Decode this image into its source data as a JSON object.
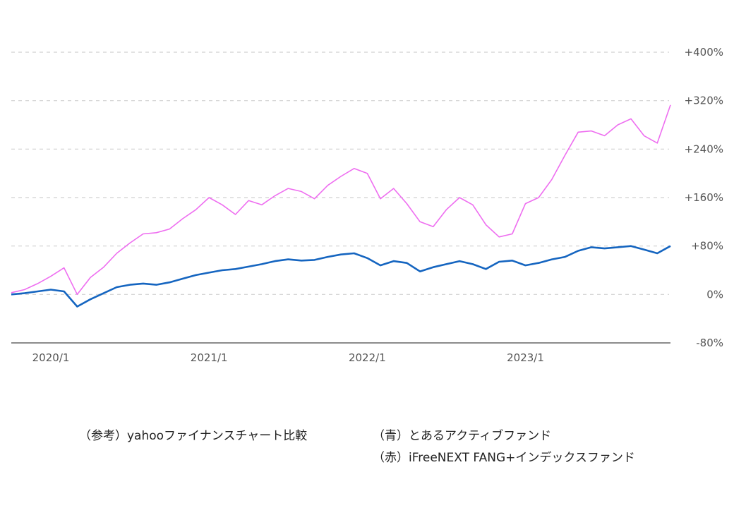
{
  "chart_data": {
    "type": "line",
    "y_ticks": [
      "+400%",
      "+320%",
      "+240%",
      "+160%",
      "+80%",
      "0%",
      "-80%"
    ],
    "y_tick_values": [
      400,
      320,
      240,
      160,
      80,
      0,
      -80
    ],
    "ylim": [
      -80,
      400
    ],
    "x_ticks": [
      "2020/1",
      "2021/1",
      "2022/1",
      "2023/1"
    ],
    "x_tick_values": [
      "2020-01",
      "2021-01",
      "2022-01",
      "2023-01"
    ],
    "xlim": [
      "2019-10",
      "2023-12"
    ],
    "grid": "horizontal-dashed",
    "series": [
      {
        "color": "#ee6ef0",
        "x": [
          "2019-10",
          "2019-11",
          "2019-12",
          "2020-01",
          "2020-02",
          "2020-03",
          "2020-04",
          "2020-05",
          "2020-06",
          "2020-07",
          "2020-08",
          "2020-09",
          "2020-10",
          "2020-11",
          "2020-12",
          "2021-01",
          "2021-02",
          "2021-03",
          "2021-04",
          "2021-05",
          "2021-06",
          "2021-07",
          "2021-08",
          "2021-09",
          "2021-10",
          "2021-11",
          "2021-12",
          "2022-01",
          "2022-02",
          "2022-03",
          "2022-04",
          "2022-05",
          "2022-06",
          "2022-07",
          "2022-08",
          "2022-09",
          "2022-10",
          "2022-11",
          "2022-12",
          "2023-01",
          "2023-02",
          "2023-03",
          "2023-04",
          "2023-05",
          "2023-06",
          "2023-07",
          "2023-08",
          "2023-09",
          "2023-10",
          "2023-11",
          "2023-12"
        ],
        "values": [
          3,
          8,
          18,
          30,
          44,
          0,
          28,
          45,
          68,
          85,
          100,
          102,
          108,
          125,
          140,
          160,
          148,
          132,
          155,
          148,
          163,
          175,
          170,
          158,
          180,
          195,
          208,
          200,
          158,
          175,
          150,
          120,
          112,
          140,
          160,
          148,
          115,
          95,
          100,
          150,
          160,
          190,
          230,
          268,
          270,
          262,
          280,
          290,
          262,
          250,
          313
        ]
      },
      {
        "color": "#1565c0",
        "x": [
          "2019-10",
          "2019-11",
          "2019-12",
          "2020-01",
          "2020-02",
          "2020-03",
          "2020-04",
          "2020-05",
          "2020-06",
          "2020-07",
          "2020-08",
          "2020-09",
          "2020-10",
          "2020-11",
          "2020-12",
          "2021-01",
          "2021-02",
          "2021-03",
          "2021-04",
          "2021-05",
          "2021-06",
          "2021-07",
          "2021-08",
          "2021-09",
          "2021-10",
          "2021-11",
          "2021-12",
          "2022-01",
          "2022-02",
          "2022-03",
          "2022-04",
          "2022-05",
          "2022-06",
          "2022-07",
          "2022-08",
          "2022-09",
          "2022-10",
          "2022-11",
          "2022-12",
          "2023-01",
          "2023-02",
          "2023-03",
          "2023-04",
          "2023-05",
          "2023-06",
          "2023-07",
          "2023-08",
          "2023-09",
          "2023-10",
          "2023-11",
          "2023-12"
        ],
        "values": [
          0,
          2,
          5,
          8,
          5,
          -20,
          -8,
          2,
          12,
          16,
          18,
          16,
          20,
          26,
          32,
          36,
          40,
          42,
          46,
          50,
          55,
          58,
          56,
          57,
          62,
          66,
          68,
          60,
          48,
          55,
          52,
          38,
          45,
          50,
          55,
          50,
          42,
          54,
          56,
          48,
          52,
          58,
          62,
          72,
          78,
          76,
          78,
          80,
          74,
          68,
          80
        ]
      }
    ]
  },
  "captions": {
    "reference": "（参考）yahooファイナンスチャート比較",
    "blue": "（青）とあるアクティブファンド",
    "red": "（赤）iFreeNEXT FANG+インデックスファンド"
  }
}
